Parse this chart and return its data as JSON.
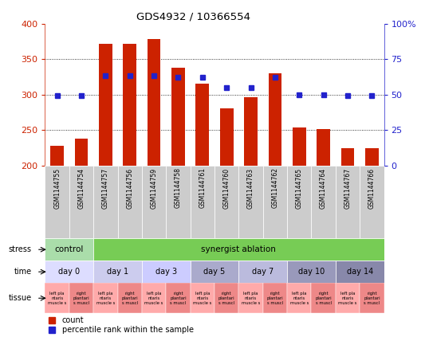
{
  "title": "GDS4932 / 10366554",
  "samples": [
    "GSM1144755",
    "GSM1144754",
    "GSM1144757",
    "GSM1144756",
    "GSM1144759",
    "GSM1144758",
    "GSM1144761",
    "GSM1144760",
    "GSM1144763",
    "GSM1144762",
    "GSM1144765",
    "GSM1144764",
    "GSM1144767",
    "GSM1144766"
  ],
  "counts": [
    228,
    238,
    372,
    372,
    378,
    338,
    315,
    280,
    296,
    330,
    254,
    251,
    224,
    224
  ],
  "percentiles": [
    49,
    49,
    63,
    63,
    63,
    62,
    62,
    55,
    55,
    62,
    50,
    50,
    49,
    49
  ],
  "ymin": 200,
  "ymax": 400,
  "yticks": [
    200,
    250,
    300,
    350,
    400
  ],
  "right_yticks": [
    0,
    25,
    50,
    75,
    100
  ],
  "bar_color": "#cc2200",
  "dot_color": "#2222cc",
  "bar_width": 0.55,
  "stress_row": [
    {
      "label": "control",
      "start": 0,
      "end": 2,
      "color": "#aaddaa"
    },
    {
      "label": "synergist ablation",
      "start": 2,
      "end": 14,
      "color": "#77cc55"
    }
  ],
  "time_row": [
    {
      "label": "day 0",
      "start": 0,
      "end": 2,
      "color": "#ddddff"
    },
    {
      "label": "day 1",
      "start": 2,
      "end": 4,
      "color": "#ccccee"
    },
    {
      "label": "day 3",
      "start": 4,
      "end": 6,
      "color": "#ccccff"
    },
    {
      "label": "day 5",
      "start": 6,
      "end": 8,
      "color": "#aaaacc"
    },
    {
      "label": "day 7",
      "start": 8,
      "end": 10,
      "color": "#bbbbdd"
    },
    {
      "label": "day 10",
      "start": 10,
      "end": 12,
      "color": "#9999bb"
    },
    {
      "label": "day 14",
      "start": 12,
      "end": 14,
      "color": "#8888aa"
    }
  ],
  "tissue_left_color": "#ffaaaa",
  "tissue_right_color": "#ee8888",
  "tissue_left_label": "left pla\nntaris\nmuscle s",
  "tissue_right_label": "right\nplantari\ns muscl",
  "tick_color_left": "#cc2200",
  "tick_color_right": "#2222cc",
  "sample_bg": "#cccccc"
}
